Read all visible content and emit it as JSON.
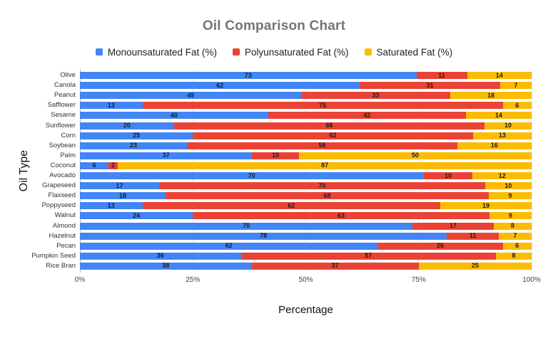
{
  "chart_data": {
    "type": "bar",
    "orientation": "horizontal",
    "stacked": "percent",
    "title": "Oil Comparison Chart",
    "xlabel": "Percentage",
    "ylabel": "Oil Type",
    "x_tick_labels": [
      "0%",
      "25%",
      "50%",
      "75%",
      "100%"
    ],
    "x_tick_values": [
      0,
      25,
      50,
      75,
      100
    ],
    "xlim": [
      0,
      100
    ],
    "grid": true,
    "legend_position": "top",
    "categories": [
      "Olive",
      "Canola",
      "Peanut",
      "Safflower",
      "Sesame",
      "Sunflower",
      "Corn",
      "Soybean",
      "Palm",
      "Coconut",
      "Avocado",
      "Grapeseed",
      "Flaxseed",
      "Poppyseed",
      "Walnut",
      "Almond",
      "Hazelnut",
      "Pecan",
      "Pumpkin Seed",
      "Rice Bran"
    ],
    "series": [
      {
        "name": "Monounsaturated Fat (%)",
        "color": "#4285F4",
        "values": [
          73,
          62,
          49,
          13,
          40,
          20,
          25,
          23,
          37,
          6,
          70,
          17,
          18,
          13,
          24,
          70,
          78,
          62,
          36,
          38
        ]
      },
      {
        "name": "Polyunsaturated Fat (%)",
        "color": "#EA4335",
        "values": [
          11,
          31,
          33,
          75,
          42,
          66,
          62,
          58,
          10,
          2,
          10,
          70,
          68,
          62,
          63,
          17,
          11,
          26,
          57,
          37
        ]
      },
      {
        "name": "Saturated Fat (%)",
        "color": "#FBBC04",
        "values": [
          14,
          7,
          18,
          6,
          14,
          10,
          13,
          16,
          50,
          87,
          12,
          10,
          9,
          19,
          9,
          8,
          7,
          6,
          8,
          25
        ]
      }
    ],
    "colors": {
      "title": "#757575",
      "gridline": "#e6e6e6",
      "baseline": "#b7b7b7",
      "value_label": "#1c1c1c"
    }
  }
}
